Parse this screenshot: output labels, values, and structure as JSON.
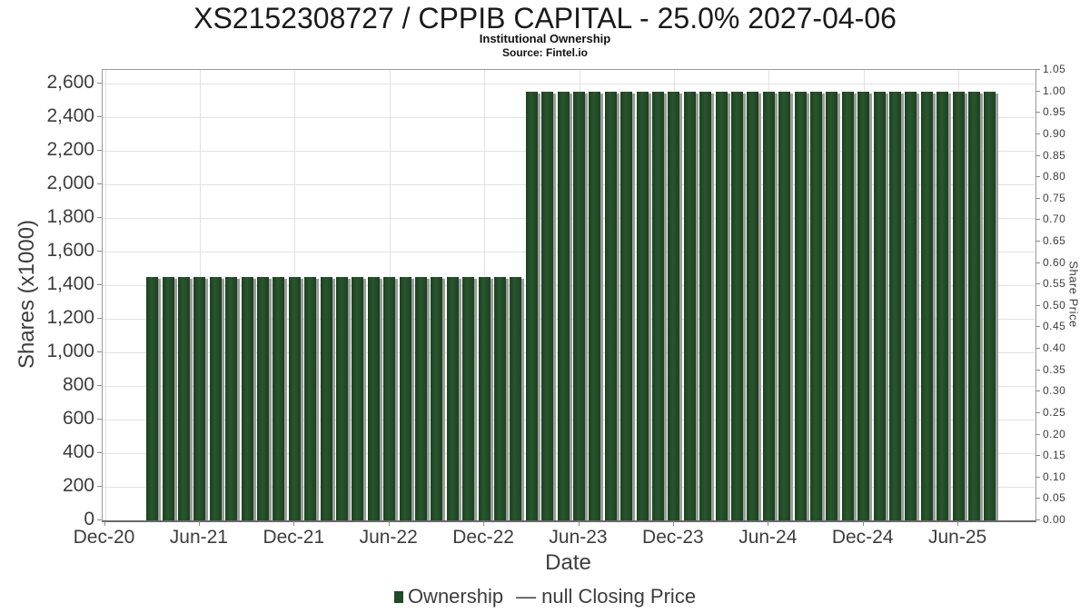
{
  "palette": {
    "bar_green": "#1f4b26",
    "bar_green_edge": "#1a421f",
    "bar_green_center": "#2a5530",
    "bar_shadow_gray": "#9c9c9c",
    "grid_gray": "#e2e2e2",
    "frame_gray": "#9b9b9b",
    "axis_dark_gray": "#686868",
    "text_gray": "#3d3d3d",
    "title_black": "#1a1a1a"
  },
  "chart_data": {
    "type": "bar",
    "title": "XS2152308727 / CPPIB CAPITAL - 25.0% 2027-04-06",
    "subtitle": "Institutional Ownership",
    "source": "Source: Fintel.io",
    "xlabel": "Date",
    "ylabel_left": "Shares (x1000)",
    "ylabel_right": "Share Price",
    "legend": [
      {
        "label": "Ownership",
        "marker": "square",
        "color": "#1f4b26"
      },
      {
        "label": "null Closing Price",
        "marker": "line",
        "marker_glyph": "—"
      }
    ],
    "x_axis": {
      "tick_labels": [
        "Dec-20",
        "Jun-21",
        "Dec-21",
        "Jun-22",
        "Dec-22",
        "Jun-23",
        "Dec-23",
        "Jun-24",
        "Dec-24",
        "Jun-25"
      ],
      "tick_step_months": 6,
      "grid": true
    },
    "y_axis_left": {
      "tick_labels": [
        "0",
        "200",
        "400",
        "600",
        "800",
        "1,000",
        "1,200",
        "1,400",
        "1,600",
        "1,800",
        "2,000",
        "2,200",
        "2,400",
        "2,600"
      ],
      "tick_step": 200,
      "scale_max": 2680,
      "grid": true
    },
    "y_axis_right": {
      "tick_labels": [
        "0.00",
        "0.05",
        "0.10",
        "0.15",
        "0.20",
        "0.25",
        "0.30",
        "0.35",
        "0.40",
        "0.45",
        "0.50",
        "0.55",
        "0.60",
        "0.65",
        "0.70",
        "0.75",
        "0.80",
        "0.85",
        "0.90",
        "0.95",
        "1.00",
        "1.05"
      ],
      "tick_step": 0.05,
      "scale_max": 1.05,
      "grid": false
    },
    "bars": {
      "unit": "shares_x1000",
      "months": [
        "Mar-21",
        "Apr-21",
        "May-21",
        "Jun-21",
        "Jul-21",
        "Aug-21",
        "Sep-21",
        "Oct-21",
        "Nov-21",
        "Dec-21",
        "Jan-22",
        "Feb-22",
        "Mar-22",
        "Apr-22",
        "May-22",
        "Jun-22",
        "Jul-22",
        "Aug-22",
        "Sep-22",
        "Oct-22",
        "Nov-22",
        "Dec-22",
        "Jan-23",
        "Feb-23",
        "Mar-23",
        "Apr-23",
        "May-23",
        "Jun-23",
        "Jul-23",
        "Aug-23",
        "Sep-23",
        "Oct-23",
        "Nov-23",
        "Dec-23",
        "Jan-24",
        "Feb-24",
        "Mar-24",
        "Apr-24",
        "May-24",
        "Jun-24",
        "Jul-24",
        "Aug-24",
        "Sep-24",
        "Oct-24",
        "Nov-24",
        "Dec-24",
        "Jan-25",
        "Feb-25",
        "Mar-25",
        "Apr-25",
        "May-25",
        "Jun-25",
        "Jul-25",
        "Aug-25"
      ],
      "values": [
        1450,
        1450,
        1450,
        1450,
        1450,
        1450,
        1450,
        1450,
        1450,
        1450,
        1450,
        1450,
        1450,
        1450,
        1450,
        1450,
        1450,
        1450,
        1450,
        1450,
        1450,
        1450,
        1450,
        1450,
        2550,
        2550,
        2550,
        2550,
        2550,
        2550,
        2550,
        2550,
        2550,
        2550,
        2550,
        2550,
        2550,
        2550,
        2550,
        2550,
        2550,
        2550,
        2550,
        2550,
        2550,
        2550,
        2550,
        2550,
        2550,
        2550,
        2550,
        2550,
        2550,
        2550
      ]
    }
  }
}
